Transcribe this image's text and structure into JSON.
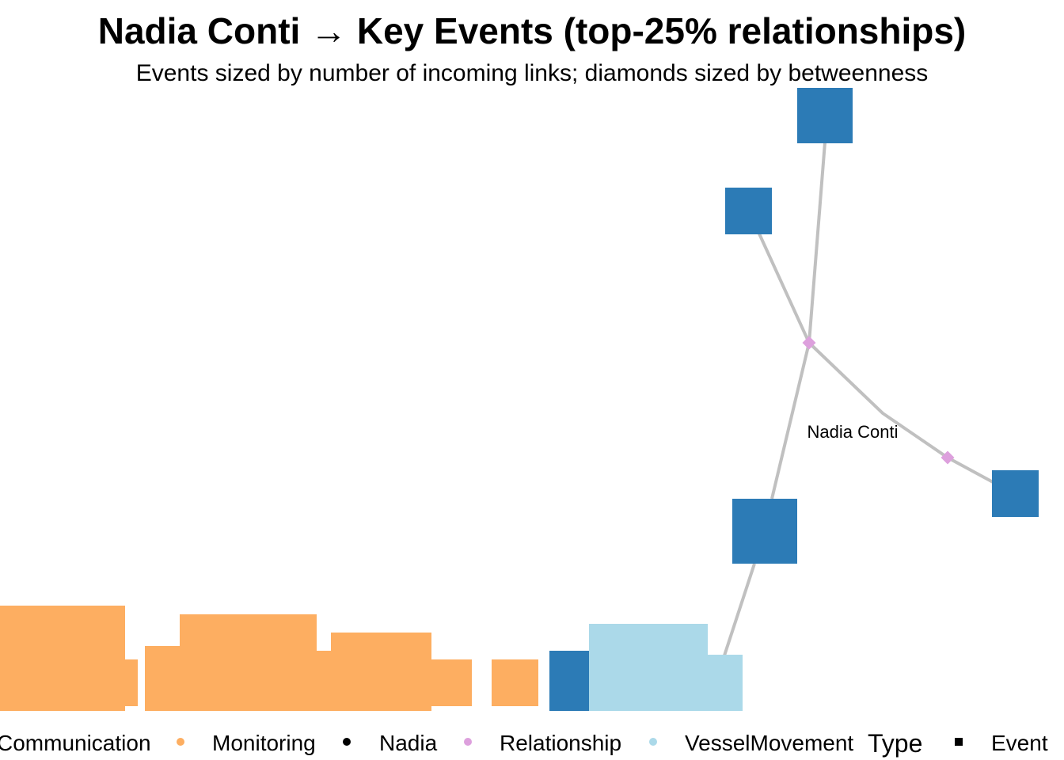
{
  "title": "Nadia Conti → Key Events (top-25% relationships)",
  "subtitle": "Events sized by number of incoming links; diamonds sized by betweenness",
  "colors": {
    "event_blue": "#2C7BB6",
    "communication": "#FDAE61",
    "monitoring": "#FDAE61",
    "vessel_movement": "#ABD9E9",
    "relationship": "#DDA0DD",
    "nadia": "#000000",
    "edge": "#C0C0C0"
  },
  "nodes": {
    "nadia_label": "Nadia Conti"
  },
  "legend": {
    "items": [
      {
        "label": "Communication"
      },
      {
        "label": "Monitoring"
      },
      {
        "label": "Nadia"
      },
      {
        "label": "Relationship"
      },
      {
        "label": "VesselMovement"
      }
    ],
    "type_title": "Type",
    "type_items": [
      {
        "label": "Event"
      }
    ]
  }
}
